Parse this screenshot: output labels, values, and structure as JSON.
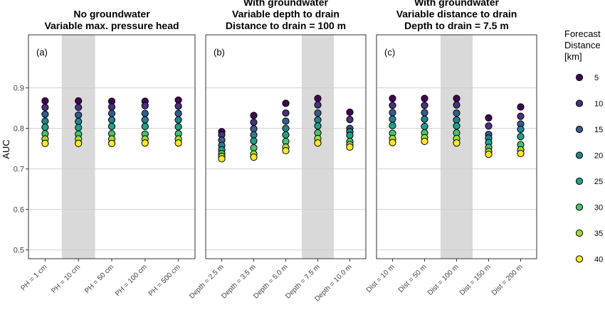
{
  "chart_data": {
    "type": "scatter",
    "ylabel": "AUC",
    "ylim": [
      0.45,
      0.95
    ],
    "yticks": [
      "0.5",
      "0.6",
      "0.7",
      "0.8",
      "0.9"
    ],
    "grid": true,
    "legend": {
      "title_lines": [
        "Forecast",
        "Distance",
        "[km]"
      ],
      "placement": "right",
      "entries": [
        "5",
        "10",
        "15",
        "20",
        "25",
        "30",
        "35",
        "40"
      ]
    },
    "series_colors": [
      "#440154",
      "#46327e",
      "#365c8d",
      "#277f8e",
      "#1fa187",
      "#4ac16d",
      "#a0da39",
      "#fde725"
    ],
    "panels": [
      {
        "label": "(a)",
        "title_lines": [
          "No groundwater",
          "Variable max. pressure head"
        ],
        "categories": [
          "PH = 1 cm",
          "PH = 10 cm",
          "PH = 50 cm",
          "PH = 100 cm",
          "PH = 500 cm"
        ],
        "highlight_index": 1,
        "values": [
          [
            0.868,
            0.852,
            0.835,
            0.818,
            0.803,
            0.787,
            0.774,
            0.763
          ],
          [
            0.868,
            0.852,
            0.833,
            0.817,
            0.802,
            0.786,
            0.774,
            0.763
          ],
          [
            0.867,
            0.853,
            0.837,
            0.821,
            0.805,
            0.787,
            0.774,
            0.763
          ],
          [
            0.867,
            0.856,
            0.837,
            0.821,
            0.805,
            0.786,
            0.774,
            0.764
          ],
          [
            0.87,
            0.855,
            0.837,
            0.821,
            0.804,
            0.787,
            0.774,
            0.764
          ]
        ]
      },
      {
        "label": "(b)",
        "title_lines": [
          "With groundwater",
          "Variable depth to drain",
          "Distance to drain = 100 m"
        ],
        "categories": [
          "Depth = 2.5 m",
          "Depth = 3.5 m",
          "Depth = 5.0 m",
          "Depth = 7.5 m",
          "Depth = 10.0 m"
        ],
        "highlight_index": 3,
        "values": [
          [
            0.792,
            0.784,
            0.771,
            0.758,
            0.747,
            0.738,
            0.731,
            0.725
          ],
          [
            0.832,
            0.815,
            0.799,
            0.784,
            0.769,
            0.752,
            0.737,
            0.729
          ],
          [
            0.862,
            0.838,
            0.818,
            0.8,
            0.784,
            0.768,
            0.754,
            0.745
          ],
          [
            0.874,
            0.858,
            0.838,
            0.821,
            0.806,
            0.789,
            0.775,
            0.764
          ],
          [
            0.84,
            0.822,
            0.8,
            0.792,
            0.783,
            0.768,
            0.76,
            0.754
          ]
        ]
      },
      {
        "label": "(c)",
        "title_lines": [
          "With groundwater",
          "Variable distance to drain",
          "Depth to drain = 7.5 m"
        ],
        "categories": [
          "Dist = 10 m",
          "Dist = 50 m",
          "Dist = 100 m",
          "Dist = 150 m",
          "Dist = 200 m"
        ],
        "highlight_index": 2,
        "values": [
          [
            0.874,
            0.857,
            0.839,
            0.823,
            0.807,
            0.788,
            0.775,
            0.765
          ],
          [
            0.874,
            0.857,
            0.839,
            0.823,
            0.805,
            0.789,
            0.777,
            0.768
          ],
          [
            0.874,
            0.858,
            0.838,
            0.821,
            0.806,
            0.789,
            0.775,
            0.764
          ],
          [
            0.826,
            0.806,
            0.785,
            0.776,
            0.765,
            0.753,
            0.743,
            0.736
          ],
          [
            0.853,
            0.83,
            0.811,
            0.798,
            0.78,
            0.76,
            0.747,
            0.738
          ]
        ]
      }
    ]
  }
}
